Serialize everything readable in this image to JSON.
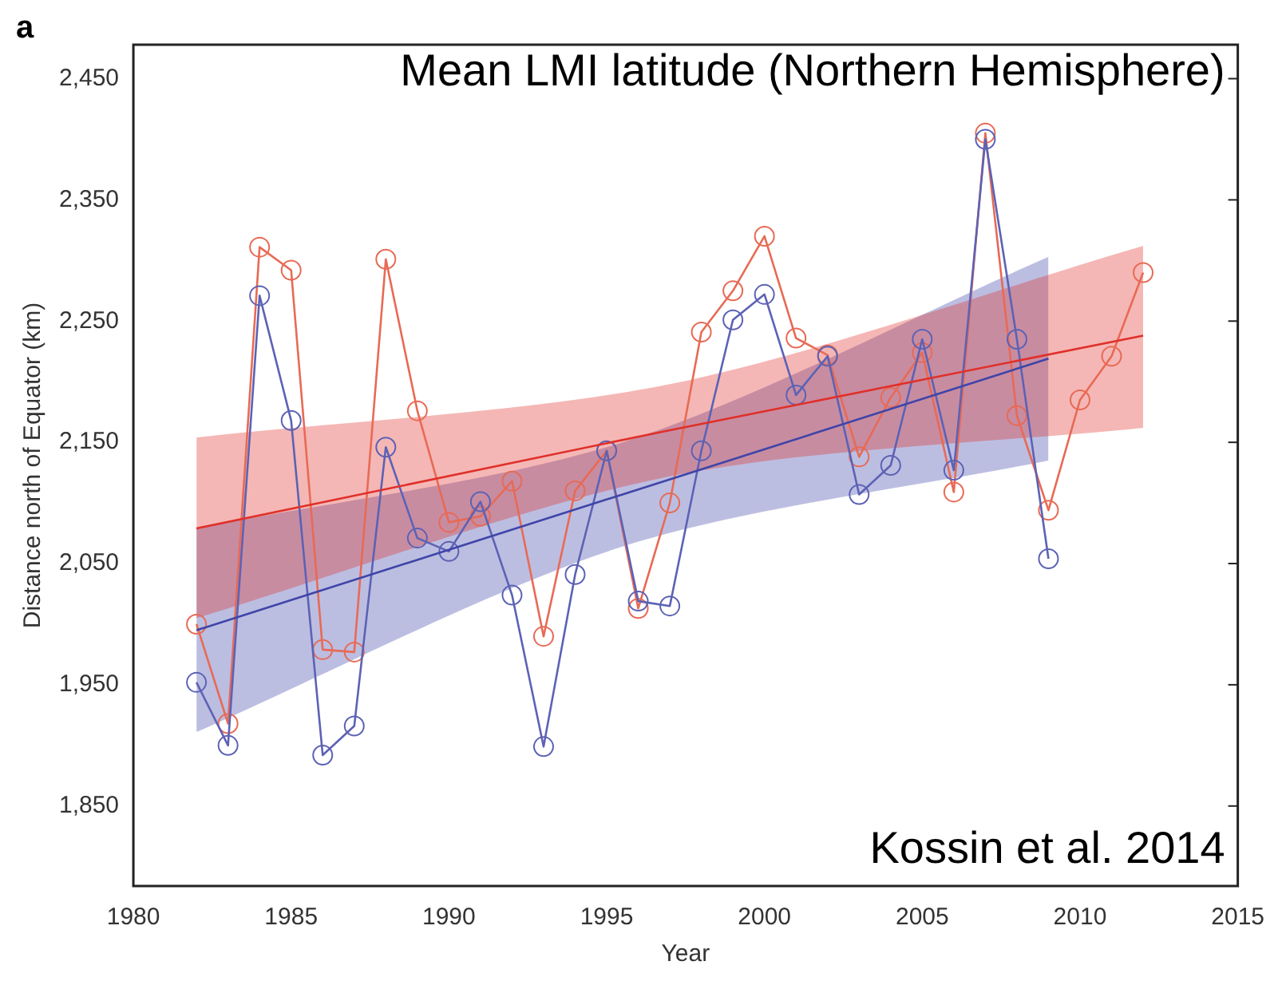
{
  "chart_data": {
    "type": "line",
    "title": "Mean LMI latitude (Northern Hemisphere)",
    "xlabel": "Year",
    "ylabel": "Distance north of Equator (km)",
    "annotations": [
      "a",
      "Kossin et al. 2014"
    ],
    "xlim": [
      1980,
      2015
    ],
    "xticks": [
      1980,
      1985,
      1990,
      1995,
      2000,
      2005,
      2010,
      2015
    ],
    "ylim": [
      1784,
      2478
    ],
    "yticks": [
      {
        "value": 1850,
        "label": "1,850"
      },
      {
        "value": 1950,
        "label": "1,950"
      },
      {
        "value": 2050,
        "label": "2,050"
      },
      {
        "value": 2150,
        "label": "2,150"
      },
      {
        "value": 2250,
        "label": "2,250"
      },
      {
        "value": 2350,
        "label": "2,350"
      },
      {
        "value": 2450,
        "label": "2,450"
      }
    ],
    "grid": false,
    "legend": false,
    "marker": "circle",
    "line_style": "solid",
    "series": [
      {
        "color": "#e86a55",
        "x": [
          1982,
          1983,
          1984,
          1985,
          1986,
          1987,
          1988,
          1989,
          1990,
          1991,
          1992,
          1993,
          1994,
          1995,
          1996,
          1997,
          1998,
          1999,
          2000,
          2001,
          2002,
          2003,
          2004,
          2005,
          2006,
          2007,
          2008,
          2009,
          2010,
          2011,
          2012
        ],
        "values": [
          2000,
          1918,
          2311,
          2292,
          1979,
          1977,
          2301,
          2176,
          2084,
          2089,
          2118,
          1990,
          2110,
          2143,
          2013,
          2100,
          2241,
          2275,
          2320,
          2236,
          2222,
          2138,
          2187,
          2224,
          2109,
          2405,
          2172,
          2094,
          2185,
          2221,
          2290
        ]
      },
      {
        "color": "#5c62b5",
        "x": [
          1982,
          1983,
          1984,
          1985,
          1986,
          1987,
          1988,
          1989,
          1990,
          1991,
          1992,
          1993,
          1994,
          1995,
          1996,
          1997,
          1998,
          1999,
          2000,
          2001,
          2002,
          2003,
          2004,
          2005,
          2006,
          2007,
          2008,
          2009
        ],
        "values": [
          1952,
          1900,
          2271,
          2168,
          1892,
          1916,
          2146,
          2071,
          2060,
          2101,
          2024,
          1899,
          2041,
          2143,
          2019,
          2015,
          2143,
          2251,
          2272,
          2189,
          2221,
          2107,
          2131,
          2235,
          2127,
          2400,
          2235,
          2054
        ]
      },
      {
        "color": "#e0302a",
        "marker": "none",
        "x": [
          1982,
          1997,
          2012
        ],
        "values": [
          2079,
          2160,
          2238
        ],
        "lower": [
          2005,
          2122,
          2162
        ],
        "upper": [
          2154,
          2198,
          2312
        ]
      },
      {
        "color": "#3f45a8",
        "marker": "none",
        "x": [
          1982,
          1995.5,
          2009
        ],
        "values": [
          1995,
          2107,
          2219
        ],
        "lower": [
          1911,
          2064,
          2135
        ],
        "upper": [
          2079,
          2150,
          2303
        ]
      }
    ]
  }
}
